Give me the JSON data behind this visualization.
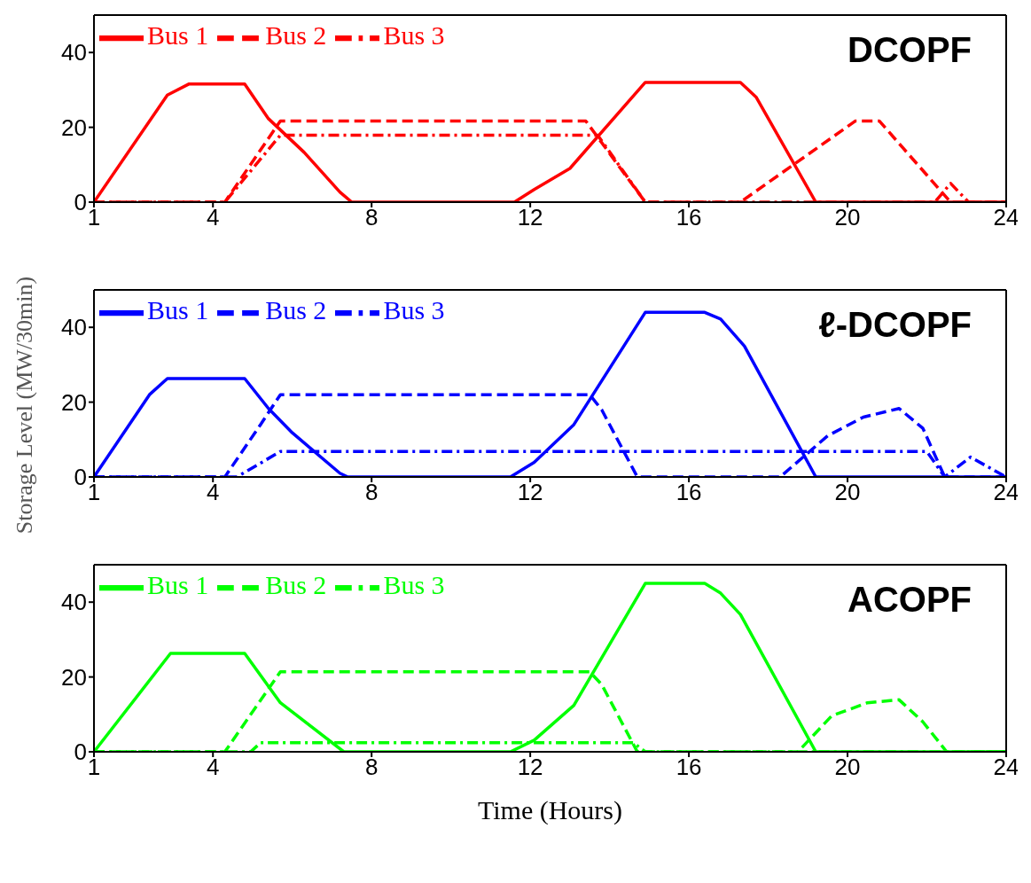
{
  "chart_data": [
    {
      "type": "line",
      "title": "DCOPF",
      "legend": "top left",
      "xlim": [
        1,
        24
      ],
      "xticks": [
        1,
        4,
        8,
        12,
        16,
        20,
        24
      ],
      "ylim": [
        0,
        50
      ],
      "yticks": [
        0,
        20,
        40
      ],
      "series": [
        {
          "name": "Bus 1",
          "color": "#ff0000",
          "line_style": "solid",
          "x": [
            1,
            2.85,
            3.4,
            4.8,
            5.4,
            6.3,
            7.2,
            7.5,
            11.6,
            12.1,
            13,
            14.9,
            17.3,
            17.7,
            19.2,
            21.9,
            24
          ],
          "values": [
            0,
            28.6,
            31.6,
            31.6,
            22.3,
            13.3,
            2.7,
            0,
            0,
            3.4,
            9,
            32,
            32,
            28,
            0,
            0,
            0
          ]
        },
        {
          "name": "Bus 2",
          "color": "#ff0000",
          "line_style": "dashed",
          "x": [
            1,
            4.3,
            5.7,
            13.4,
            14.9,
            17.3,
            20.2,
            20.8,
            22.6,
            24
          ],
          "values": [
            0,
            0,
            21.7,
            21.7,
            0,
            0,
            21.7,
            21.7,
            0,
            0
          ]
        },
        {
          "name": "Bus 3",
          "color": "#ff0000",
          "line_style": "dashdot",
          "x": [
            1,
            4.3,
            5.7,
            13.7,
            14.9,
            22.2,
            22.6,
            23.05,
            24
          ],
          "values": [
            0,
            0,
            17.9,
            17.9,
            0,
            0,
            5,
            0,
            0
          ]
        }
      ]
    },
    {
      "type": "line",
      "title": "ℓ-DCOPF",
      "ylabel": "Storage Level (MW/30min)",
      "legend": "top left",
      "xlim": [
        1,
        24
      ],
      "xticks": [
        1,
        4,
        8,
        12,
        16,
        20,
        24
      ],
      "ylim": [
        0,
        50
      ],
      "yticks": [
        0,
        20,
        40
      ],
      "series": [
        {
          "name": "Bus 1",
          "color": "#0000ff",
          "line_style": "solid",
          "x": [
            1,
            2.4,
            2.85,
            4.8,
            5.4,
            6,
            7.2,
            7.4,
            11.5,
            12.1,
            13.1,
            14.9,
            16.4,
            16.8,
            17.4,
            19.2,
            24
          ],
          "values": [
            0,
            22,
            26.3,
            26.3,
            18.3,
            11.8,
            1,
            0,
            0,
            3.9,
            14,
            44,
            44,
            42.2,
            35,
            0,
            0
          ]
        },
        {
          "name": "Bus 2",
          "color": "#0000ff",
          "line_style": "dashed",
          "x": [
            1,
            4.3,
            5.2,
            5.7,
            13.5,
            13.8,
            14.7,
            18.3,
            19.5,
            20.4,
            21.3,
            21.9,
            22.45,
            24
          ],
          "values": [
            0,
            0,
            14,
            22,
            22,
            18,
            0,
            0,
            11,
            16,
            18.3,
            13,
            0,
            0
          ]
        },
        {
          "name": "Bus 3",
          "color": "#0000ff",
          "line_style": "dashdot",
          "x": [
            1,
            4.6,
            5.7,
            22,
            22.45,
            23.1,
            24
          ],
          "values": [
            0,
            0,
            6.8,
            6.8,
            0,
            5.3,
            0
          ]
        }
      ]
    },
    {
      "type": "line",
      "title": "ACOPF",
      "xlabel": "Time (Hours)",
      "legend": "top left",
      "xlim": [
        1,
        24
      ],
      "xticks": [
        1,
        4,
        8,
        12,
        16,
        20,
        24
      ],
      "ylim": [
        0,
        50
      ],
      "yticks": [
        0,
        20,
        40
      ],
      "series": [
        {
          "name": "Bus 1",
          "color": "#00ff00",
          "line_style": "solid",
          "x": [
            1,
            2.93,
            4.8,
            5.7,
            7.3,
            11.5,
            12.1,
            13.1,
            14.9,
            16.4,
            16.8,
            17.3,
            19.2,
            24
          ],
          "values": [
            0,
            26.3,
            26.3,
            13.1,
            0,
            0,
            3.1,
            12.4,
            45,
            45,
            42.4,
            36.7,
            0,
            0
          ]
        },
        {
          "name": "Bus 2",
          "color": "#00ff00",
          "line_style": "dashed",
          "x": [
            1,
            4.3,
            5.7,
            13.5,
            13.8,
            14.7,
            18.75,
            19.6,
            20.5,
            21.3,
            21.9,
            22.5,
            24
          ],
          "values": [
            0,
            0,
            21.4,
            21.4,
            18,
            0,
            0,
            9.6,
            13.1,
            13.9,
            8,
            0,
            0
          ]
        },
        {
          "name": "Bus 3",
          "color": "#00ff00",
          "line_style": "dashdot",
          "x": [
            1,
            4.95,
            5.2,
            14.6,
            14.9,
            24
          ],
          "values": [
            0,
            0,
            2.4,
            2.4,
            0,
            0
          ]
        }
      ]
    }
  ]
}
